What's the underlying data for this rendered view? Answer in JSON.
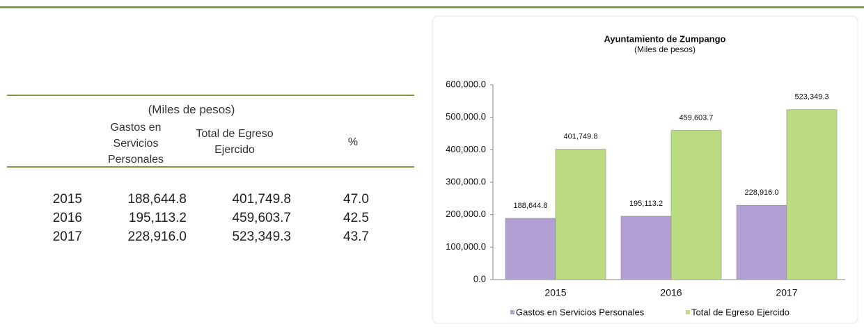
{
  "table": {
    "caption": "(Miles de pesos)",
    "columns": [
      "Gastos en Servicios Personales",
      "Total de Egreso Ejercido",
      "%"
    ],
    "rows": [
      [
        "2015",
        "188,644.8",
        "401,749.8",
        "47.0"
      ],
      [
        "2016",
        "195,113.2",
        "459,603.7",
        "42.5"
      ],
      [
        "2017",
        "228,916.0",
        "523,349.3",
        "43.7"
      ]
    ]
  },
  "chart_data": {
    "type": "bar",
    "title": "Ayuntamiento de Zumpango",
    "subtitle": "(Miles de pesos)",
    "categories": [
      "2015",
      "2016",
      "2017"
    ],
    "series": [
      {
        "name": "Gastos en Servicios Personales",
        "color": "#b29fd4",
        "values": [
          188644.8,
          195113.2,
          228916.0
        ],
        "value_labels": [
          "188,644.8",
          "195,113.2",
          "228,916.0"
        ]
      },
      {
        "name": "Total de Egreso Ejercido",
        "color": "#bcdc82",
        "values": [
          401749.8,
          459603.7,
          523349.3
        ],
        "value_labels": [
          "401,749.8",
          "459,603.7",
          "523,349.3"
        ]
      }
    ],
    "ylim": [
      0,
      600000
    ],
    "yticks": [
      {
        "value": 0,
        "label": "0.0"
      },
      {
        "value": 100000,
        "label": "100,000.0"
      },
      {
        "value": 200000,
        "label": "200,000.0"
      },
      {
        "value": 300000,
        "label": "300,000.0"
      },
      {
        "value": 400000,
        "label": "400,000.0"
      },
      {
        "value": 500000,
        "label": "500,000.0"
      },
      {
        "value": 600000,
        "label": "600,000.0"
      }
    ],
    "legend": "bottom"
  }
}
